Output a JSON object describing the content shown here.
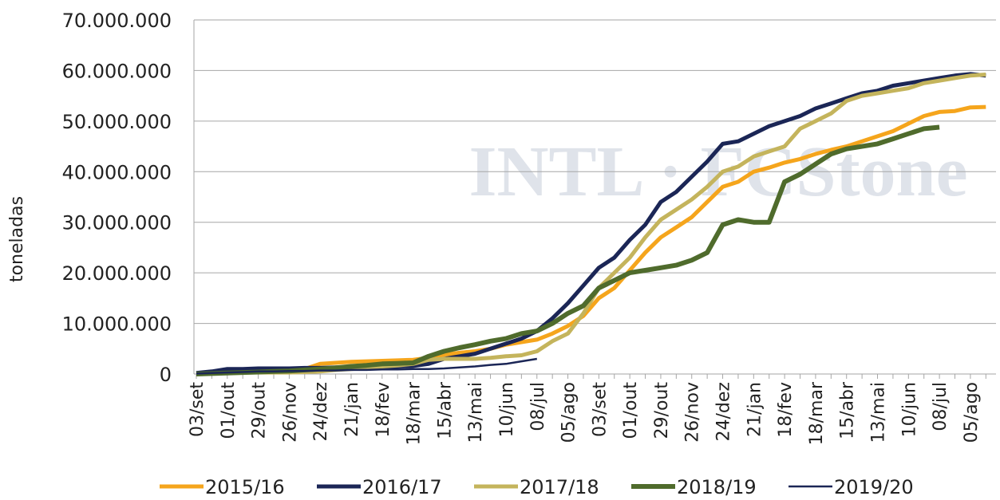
{
  "chart_data": {
    "type": "line",
    "watermark": "INTL · FCStone",
    "ylabel": "toneladas",
    "categories": [
      "03/set",
      null,
      "01/out",
      null,
      "29/out",
      null,
      "26/nov",
      null,
      "24/dez",
      null,
      "21/jan",
      null,
      "18/fev",
      null,
      "18/mar",
      null,
      "15/abr",
      null,
      "13/mai",
      null,
      "10/jun",
      null,
      "08/jul",
      null,
      "05/ago",
      null,
      "03/set",
      null,
      "01/out",
      null,
      "29/out",
      null,
      "26/nov",
      null,
      "24/dez",
      null,
      "21/jan",
      null,
      "18/fev",
      null,
      "18/mar",
      null,
      "15/abr",
      null,
      "13/mai",
      null,
      "10/jun",
      null,
      "08/jul",
      null,
      "05/ago",
      null
    ],
    "series": [
      {
        "name": "2015/16",
        "color": "#f5a51c",
        "width": 5,
        "values": [
          0,
          100000,
          200000,
          300000,
          400000,
          500000,
          700000,
          1000000,
          2000000,
          2200000,
          2400000,
          2500000,
          2600000,
          2700000,
          2800000,
          3200000,
          3800000,
          4200000,
          4500000,
          5000000,
          5800000,
          6300000,
          6800000,
          8000000,
          9500000,
          11500000,
          15000000,
          17000000,
          20500000,
          24000000,
          27000000,
          29000000,
          31000000,
          34000000,
          37000000,
          38000000,
          40000000,
          40800000,
          41800000,
          42500000,
          43500000,
          44300000,
          45000000,
          46000000,
          47000000,
          48000000,
          49500000,
          51000000,
          51800000,
          52000000,
          52700000,
          52800000
        ]
      },
      {
        "name": "2016/17",
        "color": "#1b2656",
        "width": 5,
        "values": [
          200000,
          500000,
          1000000,
          1000000,
          1100000,
          1100000,
          1100000,
          1200000,
          1200000,
          1300000,
          1300000,
          1300000,
          1400000,
          1500000,
          1600000,
          2000000,
          3000000,
          3500000,
          4000000,
          5000000,
          6000000,
          7000000,
          8500000,
          11000000,
          14000000,
          17500000,
          21000000,
          23000000,
          26500000,
          29500000,
          34000000,
          36000000,
          39000000,
          42000000,
          45500000,
          46000000,
          47500000,
          49000000,
          50000000,
          51000000,
          52500000,
          53500000,
          54500000,
          55500000,
          56000000,
          57000000,
          57500000,
          58000000,
          58500000,
          59000000,
          59300000,
          59000000
        ]
      },
      {
        "name": "2017/18",
        "color": "#c4b45c",
        "width": 5,
        "values": [
          0,
          100000,
          200000,
          300000,
          300000,
          300000,
          300000,
          400000,
          500000,
          800000,
          1000000,
          1200000,
          1500000,
          1700000,
          2000000,
          2800000,
          3000000,
          3000000,
          3000000,
          3200000,
          3500000,
          3700000,
          4500000,
          6500000,
          8000000,
          12000000,
          17000000,
          20000000,
          23000000,
          27000000,
          30500000,
          32500000,
          34500000,
          37000000,
          40000000,
          41000000,
          43000000,
          44000000,
          45000000,
          48500000,
          50000000,
          51500000,
          54000000,
          55000000,
          55500000,
          56000000,
          56500000,
          57500000,
          58000000,
          58500000,
          59000000,
          59200000
        ]
      },
      {
        "name": "2018/19",
        "color": "#4f6b2c",
        "width": 6,
        "values": [
          0,
          100000,
          200000,
          300000,
          400000,
          500000,
          600000,
          800000,
          1000000,
          1200000,
          1500000,
          1700000,
          2000000,
          2100000,
          2200000,
          3500000,
          4500000,
          5200000,
          5800000,
          6500000,
          7000000,
          8000000,
          8500000,
          10000000,
          12000000,
          13500000,
          17000000,
          18500000,
          20000000,
          20500000,
          21000000,
          21500000,
          22500000,
          24000000,
          29500000,
          30500000,
          30000000,
          30000000,
          38000000,
          39500000,
          41500000,
          43500000,
          44500000,
          45000000,
          45500000,
          46500000,
          47500000,
          48500000,
          48800000,
          null,
          null,
          null
        ]
      },
      {
        "name": "2019/20",
        "color": "#1b2656",
        "width": 2.5,
        "values": [
          100000,
          200000,
          300000,
          400000,
          500000,
          500000,
          600000,
          600000,
          700000,
          700000,
          800000,
          800000,
          900000,
          900000,
          1000000,
          1000000,
          1100000,
          1300000,
          1500000,
          1800000,
          2000000,
          2500000,
          3000000,
          null,
          null,
          null,
          null,
          null,
          null,
          null,
          null,
          null,
          null,
          null,
          null,
          null,
          null,
          null,
          null,
          null,
          null,
          null,
          null,
          null,
          null,
          null,
          null,
          null,
          null,
          null,
          null,
          null
        ]
      }
    ],
    "ylim": [
      0,
      70000000
    ],
    "yticks": [
      0,
      {
        "value": 10000000,
        "label": "10.000.000"
      },
      {
        "value": 20000000,
        "label": "20.000.000"
      },
      {
        "value": 30000000,
        "label": "30.000.000"
      },
      {
        "value": 40000000,
        "label": "40.000.000"
      },
      {
        "value": 50000000,
        "label": "50.000.000"
      },
      {
        "value": 60000000,
        "label": "60.000.000"
      },
      {
        "value": 70000000,
        "label": "70.000.000"
      }
    ],
    "grid": true,
    "legend": "bottom"
  }
}
